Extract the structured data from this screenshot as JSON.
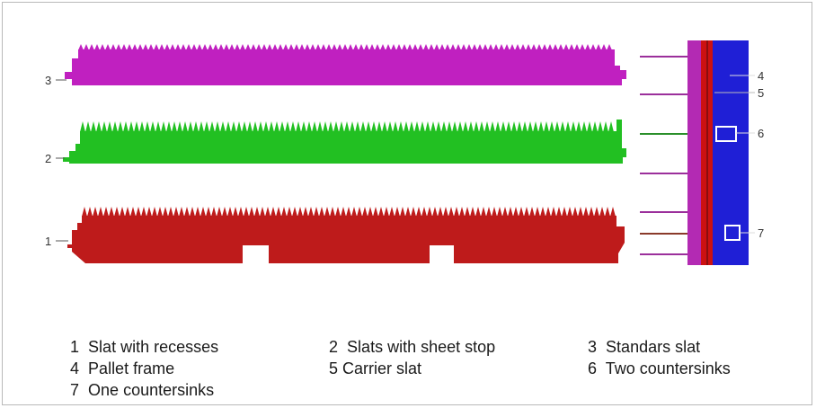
{
  "colors": {
    "slat_standard": "#c020c0",
    "slat_sheet_stop": "#22c022",
    "slat_recesses": "#be1b1b",
    "pallet_frame": "#1f1fd6",
    "carrier_slat": "#cc1111",
    "side_strip": "#b32ab3",
    "leader_line": "#555555"
  },
  "callouts": {
    "slat3": "3",
    "slat2": "2",
    "slat1": "1",
    "frame4": "4",
    "carrier5": "5",
    "countersink6": "6",
    "countersink7": "7"
  },
  "legend": [
    {
      "number": "1",
      "text": "Slat with recesses"
    },
    {
      "number": "2",
      "text": "Slats with sheet stop"
    },
    {
      "number": "3",
      "text": "Standars slat"
    },
    {
      "number": "4",
      "text": "Pallet frame"
    },
    {
      "number": "5",
      "text": "Carrier slat"
    },
    {
      "number": "6",
      "text": "Two countersinks"
    },
    {
      "number": "7",
      "text": "One countersinks"
    }
  ]
}
